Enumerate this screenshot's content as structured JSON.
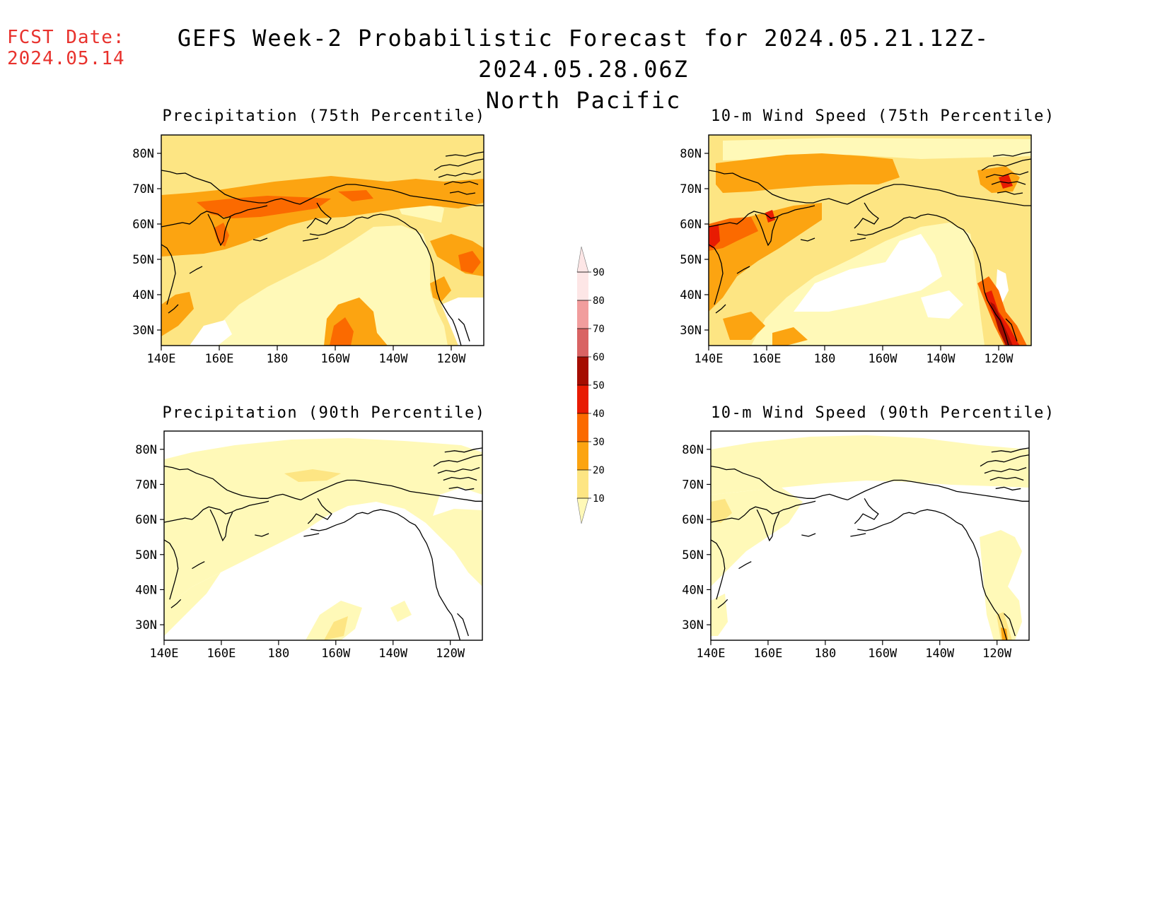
{
  "header": {
    "fcst_label": "FCST Date:",
    "fcst_date": "2024.05.14",
    "title": "GEFS Week-2 Probabilistic Forecast for 2024.05.21.12Z-2024.05.28.06Z",
    "region": "North Pacific"
  },
  "panels": [
    {
      "title": "Precipitation (75th Percentile)"
    },
    {
      "title": "10-m Wind Speed (75th Percentile)"
    },
    {
      "title": "Precipitation (90th Percentile)"
    },
    {
      "title": "10-m Wind Speed (90th Percentile)"
    }
  ],
  "axes": {
    "lon_labels": [
      "140E",
      "160E",
      "180",
      "160W",
      "140W",
      "120W"
    ],
    "lat_labels": [
      "80N",
      "70N",
      "60N",
      "50N",
      "40N",
      "30N"
    ]
  },
  "legend": {
    "levels": [
      "10",
      "20",
      "30",
      "40",
      "50",
      "60",
      "70",
      "80",
      "90"
    ],
    "colors": [
      "#fff9b8",
      "#fde583",
      "#fca411",
      "#fb6a00",
      "#e81b02",
      "#a50c00",
      "#d96363",
      "#f19d9d",
      "#fde6e6"
    ]
  }
}
